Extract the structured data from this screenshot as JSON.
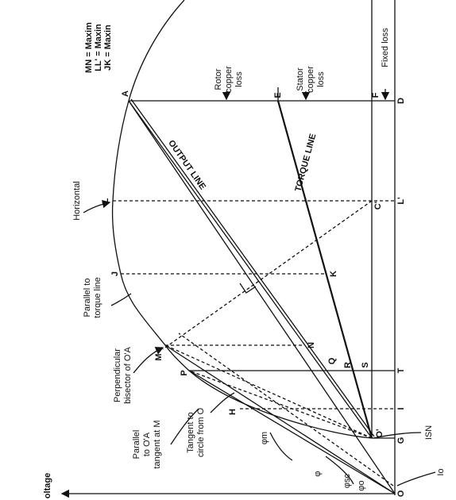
{
  "points": [
    "O",
    "O'",
    "G",
    "I",
    "T",
    "L'",
    "D",
    "A",
    "E",
    "F",
    "L",
    "C'",
    "J",
    "K",
    "M",
    "N",
    "P",
    "Q",
    "R",
    "S",
    "H"
  ],
  "annotations": [
    [
      "Horizontal"
    ],
    [
      "Parallel to",
      "torque line"
    ],
    [
      "Perpendicular",
      "bisector of O'A"
    ],
    [
      "Parallel",
      "to O'A",
      "tangent at M"
    ],
    [
      "Tangent to",
      "circle from O"
    ],
    [
      "Rotor",
      "copper",
      "loss"
    ],
    [
      "Stator",
      "copper",
      "loss"
    ],
    [
      "Fixed loss"
    ]
  ],
  "line_labels": [
    "OUTPUT LINE",
    "TORQUE LINE"
  ],
  "symbols": [
    "φ",
    "φsc",
    "φo",
    "φm",
    "Io",
    "ISN"
  ],
  "axis_label": "oltage",
  "legend": [
    "MN = Maxim",
    "LL' = Maxin",
    "JK = Maxin"
  ]
}
